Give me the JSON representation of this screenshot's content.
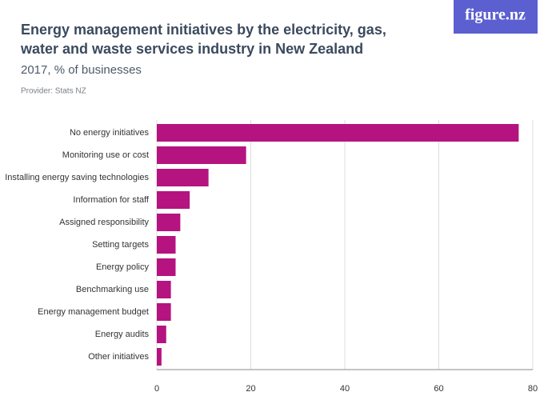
{
  "logo": "figure.nz",
  "chart_data": {
    "type": "bar",
    "orientation": "horizontal",
    "title": "Energy management initiatives by the electricity, gas, water and waste services industry in New Zealand",
    "subtitle": "2017, % of businesses",
    "provider": "Provider: Stats NZ",
    "categories": [
      "No energy initiatives",
      "Monitoring use or cost",
      "Installing energy saving technologies",
      "Information for staff",
      "Assigned responsibility",
      "Setting targets",
      "Energy policy",
      "Benchmarking use",
      "Energy management budget",
      "Energy audits",
      "Other initiatives"
    ],
    "values": [
      77,
      19,
      11,
      7,
      5,
      4,
      4,
      3,
      3,
      2,
      1
    ],
    "color": "#b5137f",
    "xlim": [
      0,
      80
    ],
    "xticks": [
      0,
      20,
      40,
      60,
      80
    ],
    "grid": true
  }
}
